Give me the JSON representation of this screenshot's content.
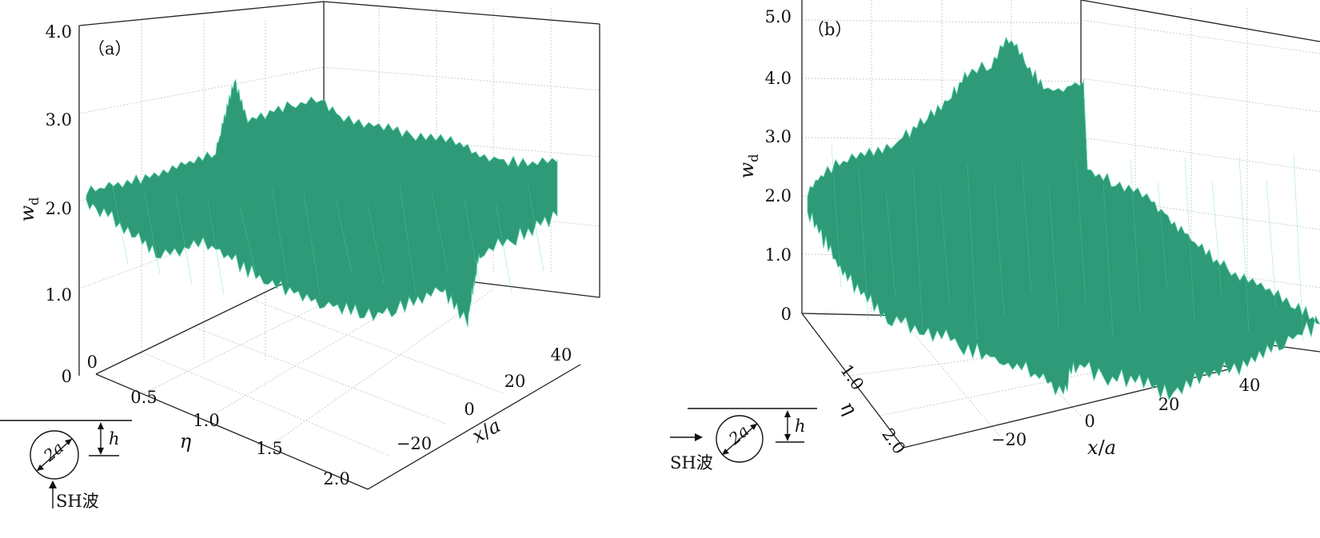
{
  "chart_data": [
    {
      "panel_label": "（a）",
      "type": "surface",
      "color": "#2e9a78",
      "edge_color": "#57d1a8",
      "x": {
        "label": "x",
        "label_sep": "/",
        "label_unit": "a",
        "ticks": [
          "−20",
          "0",
          "20",
          "40"
        ],
        "range": [
          -40,
          40
        ]
      },
      "y": {
        "label": "η",
        "ticks": [
          "0.5",
          "1.0",
          "1.5",
          "2.0"
        ],
        "zero_tick": "0",
        "range": [
          0,
          2
        ]
      },
      "z": {
        "label": "w",
        "label_sub": "d",
        "ticks": [
          "0",
          "1.0",
          "2.0",
          "3.0",
          "4.0"
        ],
        "range": [
          0,
          4
        ]
      },
      "surface_summary": {
        "value_at_far_left": 2.0,
        "peak_value": 3.4,
        "peak_x": -30,
        "plateau_value": 3.0,
        "trough_value": 0.8,
        "trough_eta": 1.6,
        "min_spike": 0.3
      },
      "inset": {
        "diameter_label": "2a",
        "depth_label": "h",
        "wave_label": "SH波",
        "wave_direction": "up"
      }
    },
    {
      "panel_label": "（b）",
      "type": "surface",
      "color": "#2e9a78",
      "edge_color": "#57d1a8",
      "x": {
        "label": "x",
        "label_sep": "/",
        "label_unit": "a",
        "ticks": [
          "−20",
          "0",
          "20",
          "40"
        ],
        "range": [
          -40,
          40
        ]
      },
      "y": {
        "label": "η",
        "ticks": [
          "1.0",
          "2.0"
        ],
        "range": [
          0,
          2
        ]
      },
      "z": {
        "label": "w",
        "label_sub": "d",
        "ticks": [
          "0",
          "1.0",
          "2.0",
          "3.0",
          "4.0",
          "5.0"
        ],
        "range": [
          0,
          5
        ]
      },
      "surface_summary": {
        "value_at_far_left": 2.0,
        "peak_value": 4.6,
        "peak_x": -10,
        "value_at_far_right": 0.0,
        "min_value": 0.0
      },
      "inset": {
        "diameter_label": "2a",
        "depth_label": "h",
        "wave_label": "SH波",
        "wave_direction": "right"
      }
    }
  ]
}
